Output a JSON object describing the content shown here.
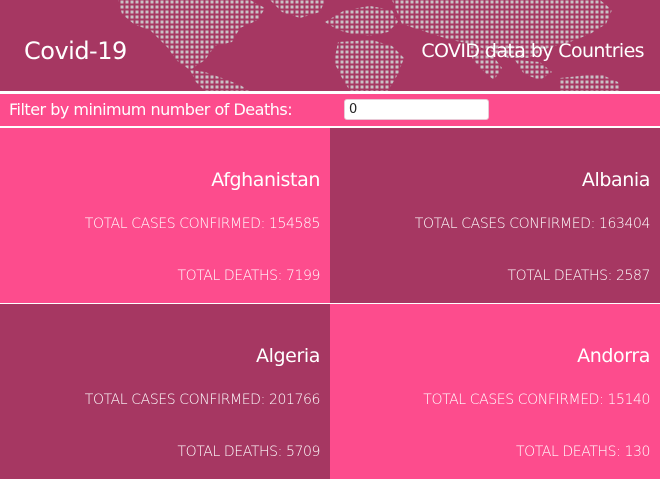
{
  "header": {
    "title": "Covid-19",
    "subtitle": "COVID data by Countries"
  },
  "filter": {
    "label": "Filter by minimum number of Deaths:",
    "value": "0"
  },
  "labels": {
    "cases_prefix": "TOTAL CASES CONFIRMED:",
    "deaths_prefix": "TOTAL DEATHS:"
  },
  "countries": [
    {
      "name": "Afghanistan",
      "cases": "154585",
      "deaths": "7199"
    },
    {
      "name": "Albania",
      "cases": "163404",
      "deaths": "2587"
    },
    {
      "name": "Algeria",
      "cases": "201766",
      "deaths": "5709"
    },
    {
      "name": "Andorra",
      "cases": "15140",
      "deaths": "130"
    }
  ],
  "colors": {
    "header_bg": "#a63762",
    "accent_pink": "#fd4c8d",
    "card_plum": "#a63762",
    "text": "#ffffff"
  }
}
